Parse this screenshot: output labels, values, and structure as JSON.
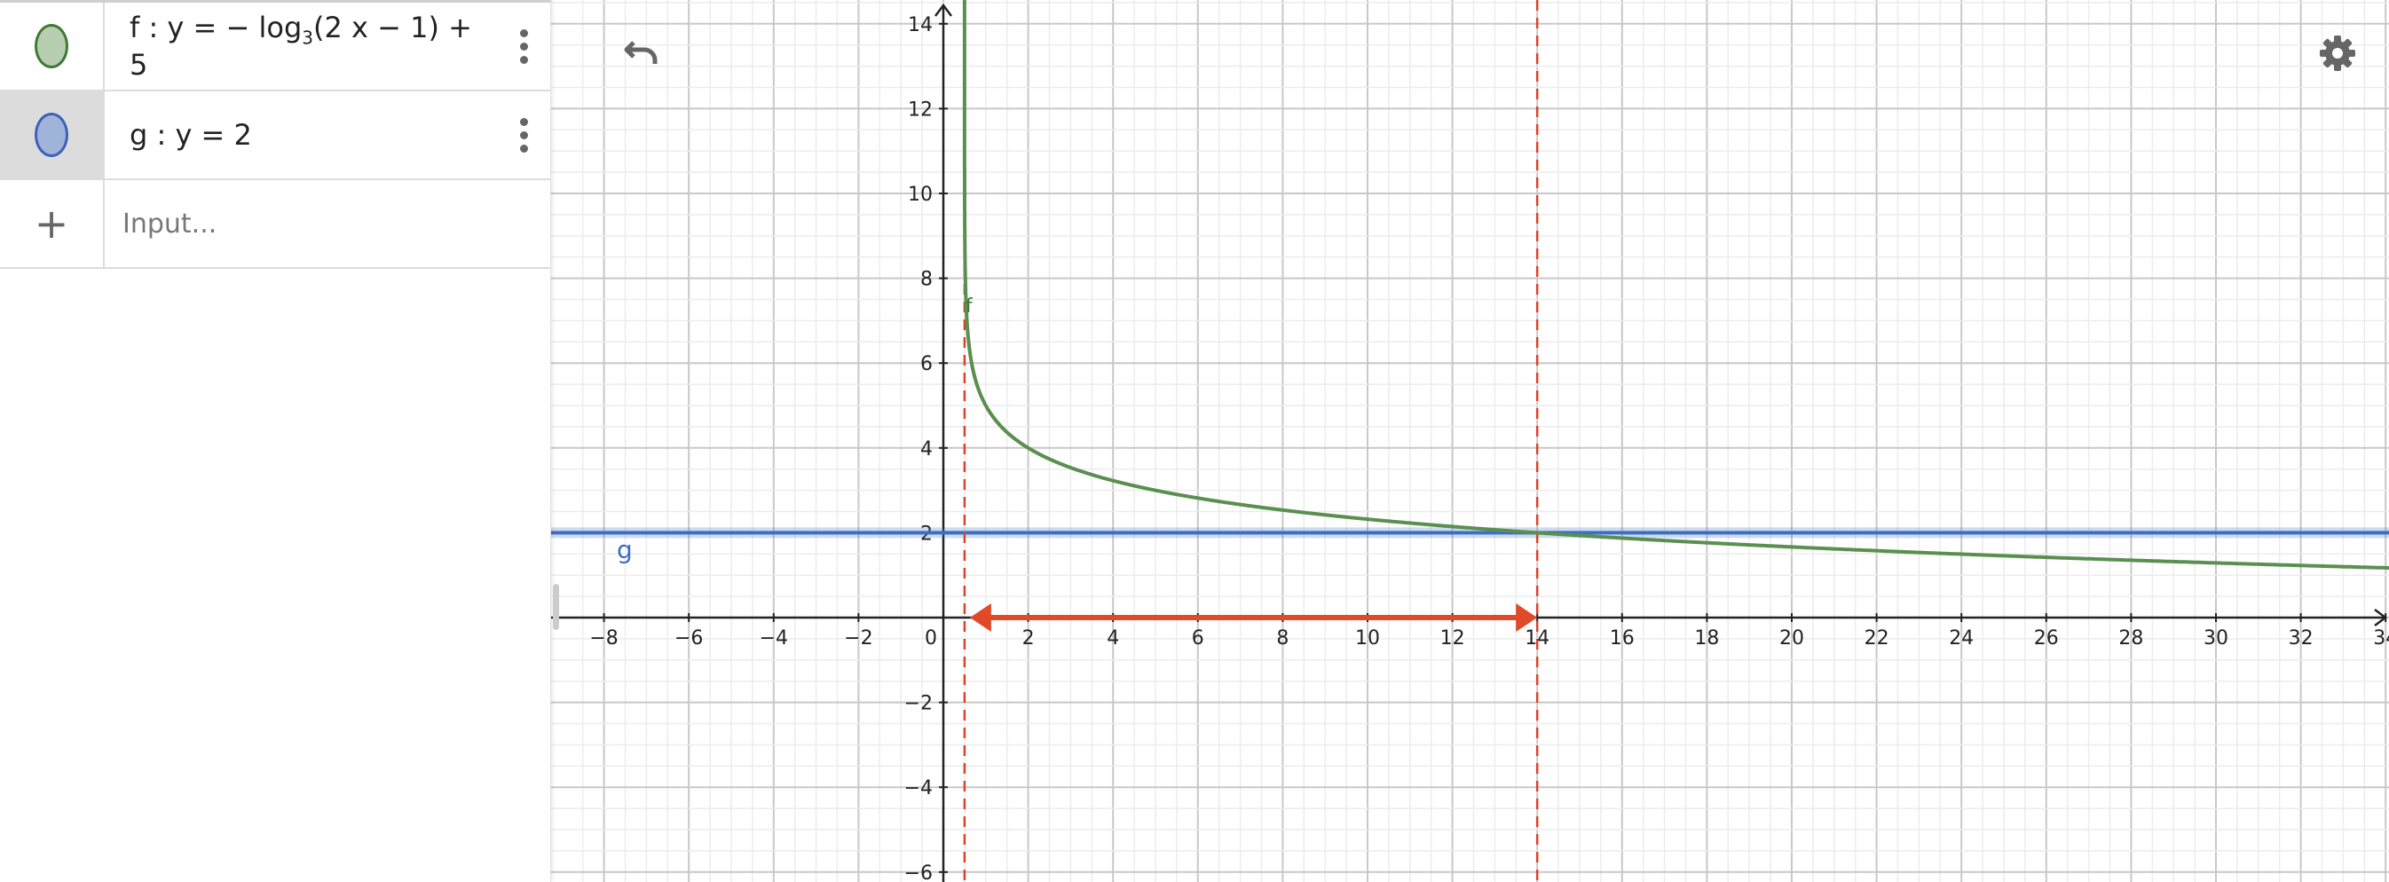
{
  "algebra": {
    "items": [
      {
        "name": "f",
        "prefix": "f : y = − log",
        "sub": "3",
        "suffix": "(2 x − 1) + 5",
        "color": "#b7cfb0",
        "border": "#3e7a34"
      },
      {
        "name": "g",
        "text": "g : y = 2",
        "color": "#9fb4d8",
        "border": "#3d61b8"
      }
    ],
    "input_placeholder": "Input..."
  },
  "graph": {
    "xlim": [
      -8.6,
      34.5
    ],
    "ylim": [
      -6.3,
      14.55
    ],
    "major_step": 2,
    "minor_step": 0.5,
    "functions": [
      {
        "name": "f",
        "expression": "-log_3(2x-1)+5",
        "color": "#5a8f50",
        "label": "f"
      },
      {
        "name": "g",
        "expression": "y=2",
        "value": 2,
        "color": "#3d6fc0",
        "label": "g"
      }
    ],
    "asymptotes_dashed": [
      0.5,
      14
    ],
    "interval_arrow": {
      "from": 0.5,
      "to": 14,
      "color": "#e04a2a"
    },
    "dashed_color": "#d6452b"
  },
  "icons": {
    "undo": "undo-icon",
    "settings": "gear-icon",
    "add": "plus-icon"
  }
}
